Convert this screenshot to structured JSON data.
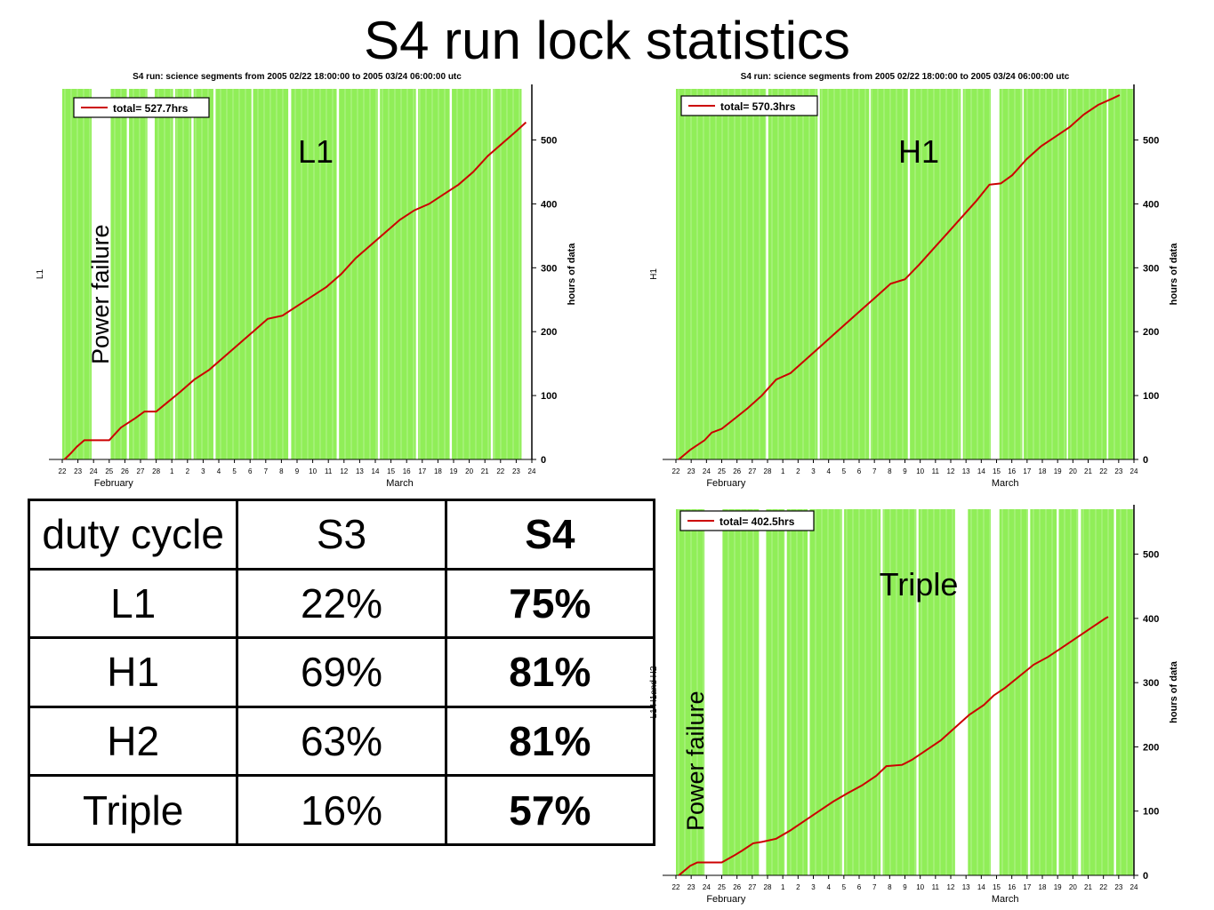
{
  "page_title": "S4 run lock statistics",
  "duty_table": {
    "headers": [
      "duty cycle",
      "S3",
      "S4"
    ],
    "rows": [
      [
        "L1",
        "22%",
        "75%"
      ],
      [
        "H1",
        "69%",
        "81%"
      ],
      [
        "H2",
        "63%",
        "81%"
      ],
      [
        "Triple",
        "16%",
        "57%"
      ]
    ]
  },
  "colors": {
    "lock": "#90EE58",
    "cumulative": "#CC0000",
    "axis": "#000000"
  },
  "chart_data": [
    {
      "id": "L1",
      "type": "area",
      "title": "S4 run: science segments from 2005 02/22 18:00:00 to 2005 03/24 06:00:00 utc",
      "overlay_label": "L1",
      "annotation": "Power failure",
      "ylabel_left": "L1",
      "ylabel_right": "hours of data",
      "legend": "total= 527.7hrs",
      "legend_position": "top-left",
      "grid": false,
      "xlim": [
        22,
        54
      ],
      "ylim": [
        0,
        580
      ],
      "yticks": [
        0,
        100,
        200,
        300,
        400,
        500
      ],
      "xticks": [
        "22",
        "23",
        "24",
        "25",
        "26",
        "27",
        "28",
        "1",
        "2",
        "3",
        "4",
        "5",
        "6",
        "7",
        "8",
        "9",
        "10",
        "11",
        "12",
        "13",
        "14",
        "15",
        "16",
        "17",
        "18",
        "19",
        "20",
        "21",
        "22",
        "23",
        "24"
      ],
      "months": [
        [
          "February",
          25.5
        ],
        [
          "March",
          45
        ]
      ],
      "unlocked_gaps": [
        [
          24.0,
          25.25
        ],
        [
          27.8,
          28.3
        ],
        [
          25.15,
          25.3
        ],
        [
          26.4,
          26.55
        ],
        [
          29.55,
          29.7
        ],
        [
          30.8,
          30.95
        ],
        [
          32.3,
          32.45
        ],
        [
          34.9,
          35.0
        ],
        [
          37.4,
          37.6
        ],
        [
          40.7,
          40.85
        ],
        [
          43.5,
          43.65
        ],
        [
          46.1,
          46.25
        ],
        [
          48.4,
          48.55
        ],
        [
          51.2,
          51.35
        ],
        [
          53.3,
          54.0
        ]
      ],
      "cumulative": [
        [
          22.15,
          0
        ],
        [
          22.6,
          10
        ],
        [
          23.0,
          20
        ],
        [
          23.5,
          30
        ],
        [
          24.0,
          30
        ],
        [
          25.2,
          30
        ],
        [
          25.6,
          40
        ],
        [
          26.0,
          50
        ],
        [
          27.0,
          65
        ],
        [
          27.6,
          75
        ],
        [
          28.4,
          75
        ],
        [
          29.2,
          90
        ],
        [
          30.0,
          105
        ],
        [
          31.0,
          125
        ],
        [
          32.0,
          140
        ],
        [
          33.0,
          160
        ],
        [
          34.0,
          180
        ],
        [
          35.0,
          200
        ],
        [
          36.0,
          220
        ],
        [
          37.0,
          225
        ],
        [
          38.0,
          240
        ],
        [
          39.0,
          255
        ],
        [
          40.0,
          270
        ],
        [
          41.0,
          290
        ],
        [
          42.0,
          315
        ],
        [
          43.0,
          335
        ],
        [
          44.0,
          355
        ],
        [
          45.0,
          375
        ],
        [
          46.0,
          390
        ],
        [
          47.0,
          400
        ],
        [
          48.0,
          415
        ],
        [
          49.0,
          430
        ],
        [
          50.0,
          450
        ],
        [
          51.0,
          475
        ],
        [
          52.0,
          495
        ],
        [
          53.0,
          515
        ],
        [
          53.6,
          527.7
        ]
      ]
    },
    {
      "id": "H1",
      "type": "area",
      "title": "S4 run: science segments from 2005 02/22 18:00:00 to 2005 03/24 06:00:00 utc",
      "overlay_label": "H1",
      "ylabel_left": "H1",
      "ylabel_right": "hours of data",
      "legend": "total= 570.3hrs",
      "legend_position": "top-left",
      "grid": false,
      "xlim": [
        22,
        54
      ],
      "ylim": [
        0,
        580
      ],
      "yticks": [
        0,
        100,
        200,
        300,
        400,
        500
      ],
      "xticks": [
        "22",
        "23",
        "24",
        "25",
        "26",
        "27",
        "28",
        "1",
        "2",
        "3",
        "4",
        "5",
        "6",
        "7",
        "8",
        "9",
        "10",
        "11",
        "12",
        "13",
        "14",
        "15",
        "16",
        "17",
        "18",
        "19",
        "20",
        "21",
        "22",
        "23",
        "24"
      ],
      "months": [
        [
          "February",
          25.5
        ],
        [
          "March",
          45
        ]
      ],
      "unlocked_gaps": [
        [
          44.0,
          44.6
        ],
        [
          28.3,
          28.45
        ],
        [
          31.9,
          32.05
        ],
        [
          35.5,
          35.6
        ],
        [
          38.2,
          38.35
        ],
        [
          41.9,
          42.05
        ],
        [
          46.2,
          46.3
        ],
        [
          49.3,
          49.4
        ],
        [
          52.1,
          52.2
        ]
      ],
      "cumulative": [
        [
          22.2,
          0
        ],
        [
          23.0,
          15
        ],
        [
          24.0,
          30
        ],
        [
          24.5,
          42
        ],
        [
          25.2,
          48
        ],
        [
          26.0,
          62
        ],
        [
          27.0,
          80
        ],
        [
          28.0,
          100
        ],
        [
          29.0,
          125
        ],
        [
          30.0,
          135
        ],
        [
          31.0,
          155
        ],
        [
          32.0,
          175
        ],
        [
          33.0,
          195
        ],
        [
          34.0,
          215
        ],
        [
          35.0,
          235
        ],
        [
          36.0,
          255
        ],
        [
          37.0,
          275
        ],
        [
          38.0,
          282
        ],
        [
          39.0,
          305
        ],
        [
          40.0,
          330
        ],
        [
          41.0,
          355
        ],
        [
          42.0,
          380
        ],
        [
          43.0,
          405
        ],
        [
          43.9,
          430
        ],
        [
          44.7,
          432
        ],
        [
          45.5,
          445
        ],
        [
          46.5,
          470
        ],
        [
          47.5,
          490
        ],
        [
          48.5,
          505
        ],
        [
          49.5,
          520
        ],
        [
          50.5,
          540
        ],
        [
          51.5,
          555
        ],
        [
          52.5,
          565
        ],
        [
          53.0,
          570.3
        ]
      ]
    },
    {
      "id": "Triple",
      "type": "area",
      "overlay_label": "Triple",
      "annotation": "Power failure",
      "ylabel_left": "L1 H1and H2",
      "ylabel_right": "hours of data",
      "legend": "total= 402.5hrs",
      "legend_position": "top-left",
      "grid": false,
      "xlim": [
        22,
        54
      ],
      "ylim": [
        0,
        570
      ],
      "yticks": [
        0,
        100,
        200,
        300,
        400,
        500
      ],
      "xticks": [
        "22",
        "23",
        "24",
        "25",
        "26",
        "27",
        "28",
        "1",
        "2",
        "3",
        "4",
        "5",
        "6",
        "7",
        "8",
        "9",
        "10",
        "11",
        "12",
        "13",
        "14",
        "15",
        "16",
        "17",
        "18",
        "19",
        "20",
        "21",
        "22",
        "23",
        "24"
      ],
      "months": [
        [
          "February",
          25.5
        ],
        [
          "March",
          45
        ]
      ],
      "unlocked_gaps": [
        [
          24.0,
          25.25
        ],
        [
          41.5,
          42.4
        ],
        [
          50.1,
          50.3
        ],
        [
          27.8,
          28.3
        ],
        [
          29.6,
          29.75
        ],
        [
          31.2,
          31.35
        ],
        [
          33.6,
          33.75
        ],
        [
          36.3,
          36.45
        ],
        [
          38.8,
          38.95
        ],
        [
          44.0,
          44.6
        ],
        [
          46.6,
          46.75
        ],
        [
          48.6,
          48.75
        ],
        [
          52.6,
          52.75
        ]
      ],
      "cumulative": [
        [
          22.2,
          0
        ],
        [
          23.0,
          15
        ],
        [
          23.5,
          20
        ],
        [
          24.0,
          20
        ],
        [
          25.2,
          20
        ],
        [
          26.0,
          30
        ],
        [
          26.6,
          38
        ],
        [
          27.4,
          50
        ],
        [
          28.0,
          52
        ],
        [
          29.0,
          57
        ],
        [
          30.0,
          70
        ],
        [
          31.0,
          85
        ],
        [
          32.0,
          100
        ],
        [
          33.0,
          115
        ],
        [
          34.0,
          128
        ],
        [
          35.0,
          140
        ],
        [
          36.0,
          155
        ],
        [
          36.7,
          170
        ],
        [
          37.8,
          172
        ],
        [
          38.5,
          180
        ],
        [
          39.5,
          195
        ],
        [
          40.5,
          210
        ],
        [
          41.5,
          230
        ],
        [
          42.5,
          250
        ],
        [
          43.5,
          265
        ],
        [
          44.2,
          280
        ],
        [
          45.0,
          292
        ],
        [
          46.0,
          310
        ],
        [
          47.0,
          328
        ],
        [
          48.0,
          340
        ],
        [
          49.0,
          355
        ],
        [
          50.0,
          370
        ],
        [
          51.0,
          385
        ],
        [
          52.0,
          400
        ],
        [
          52.2,
          402.5
        ]
      ]
    }
  ]
}
